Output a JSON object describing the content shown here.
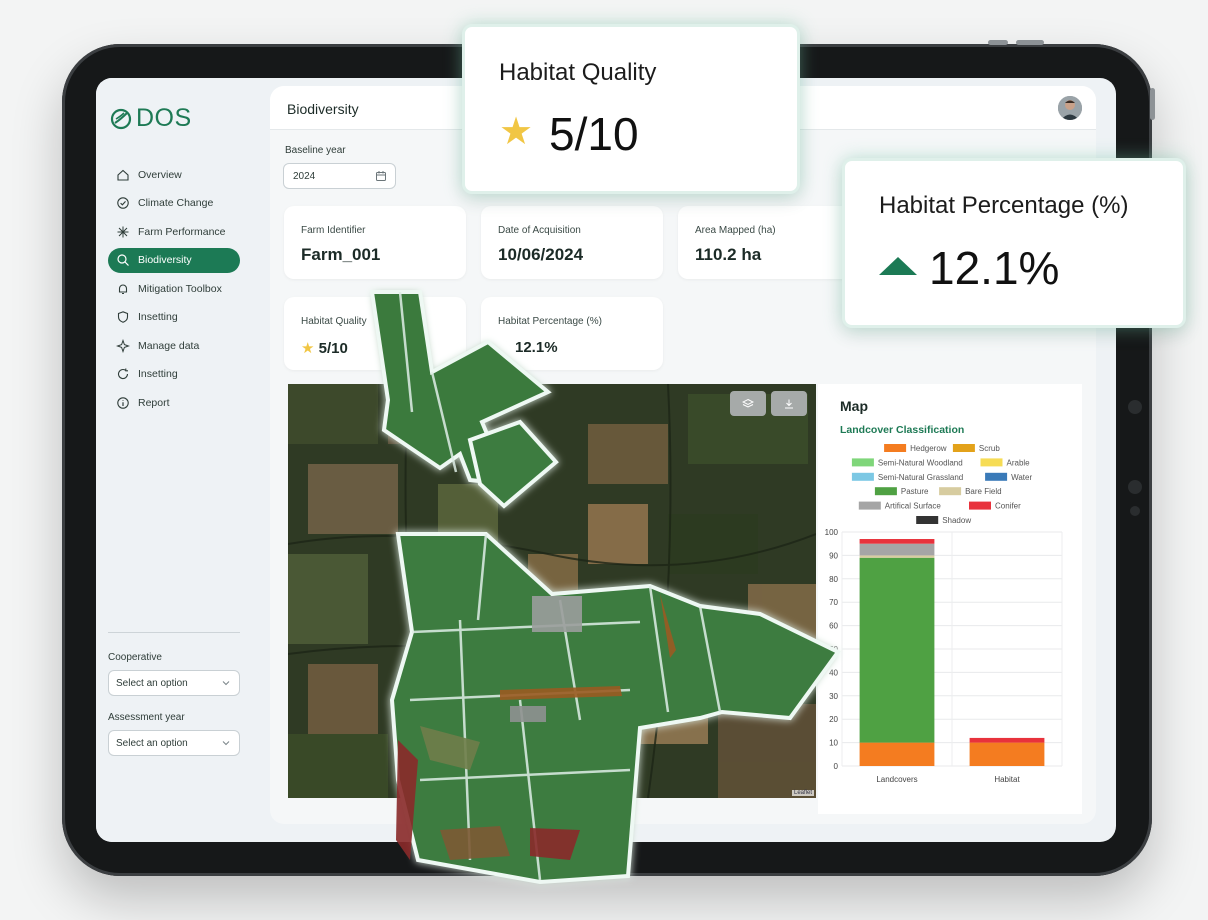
{
  "app": {
    "logo_text": "DOS",
    "brand_color": "#1c7a55"
  },
  "sidebar": {
    "items": [
      {
        "label": "Overview",
        "icon": "home-icon"
      },
      {
        "label": "Climate Change",
        "icon": "check-circle-icon"
      },
      {
        "label": "Farm Performance",
        "icon": "farm-icon"
      },
      {
        "label": "Biodiversity",
        "icon": "search-icon",
        "active": true
      },
      {
        "label": "Mitigation Toolbox",
        "icon": "bell-icon"
      },
      {
        "label": "Insetting",
        "icon": "shield-icon"
      },
      {
        "label": "Manage data",
        "icon": "sparkle-icon"
      },
      {
        "label": "Insetting",
        "icon": "refresh-icon"
      },
      {
        "label": "Report",
        "icon": "info-icon"
      }
    ],
    "cooperative_label": "Cooperative",
    "cooperative_value": "Select an option",
    "assessment_label": "Assessment year",
    "assessment_value": "Select an option"
  },
  "header": {
    "page_title": "Biodiversity"
  },
  "filters": {
    "baseline_label": "Baseline year",
    "baseline_value": "2024"
  },
  "cards": {
    "farm_id": {
      "label": "Farm Identifier",
      "value": "Farm_001"
    },
    "date": {
      "label": "Date of Acquisition",
      "value": "10/06/2024"
    },
    "area": {
      "label": "Area Mapped (ha)",
      "value": "110.2 ha"
    },
    "habitat_quality": {
      "label": "Habitat Quality",
      "value": "5/10",
      "rating": 5,
      "rating_max": 10
    },
    "habitat_percentage": {
      "label": "Habitat Percentage (%)",
      "value": "12.1%"
    }
  },
  "map": {
    "attribution": "Leaflet"
  },
  "chart_panel": {
    "title": "Map",
    "subtitle": "Landcover Classification"
  },
  "callouts": {
    "quality_label": "Habitat Quality",
    "quality_value": "5/10",
    "percentage_label": "Habitat Percentage (%)",
    "percentage_value": "12.1%",
    "star_color": "#f1c644",
    "trend_color": "#1c7a55"
  },
  "chart_data": {
    "type": "bar",
    "stacked": true,
    "categories": [
      "Landcovers",
      "Habitat"
    ],
    "ylim": [
      0,
      100
    ],
    "yticks": [
      0,
      10,
      20,
      30,
      40,
      50,
      60,
      70,
      80,
      90,
      100
    ],
    "grid": true,
    "legend_position": "top",
    "series": [
      {
        "name": "Hedgerow",
        "color": "#f47c20",
        "values": [
          10,
          10
        ]
      },
      {
        "name": "Scrub",
        "color": "#e3a21a",
        "values": [
          0,
          0
        ]
      },
      {
        "name": "Semi-Natural Woodland",
        "color": "#7fd67a",
        "values": [
          0,
          0
        ]
      },
      {
        "name": "Arable",
        "color": "#f6dc55",
        "values": [
          0,
          0
        ]
      },
      {
        "name": "Semi-Natural Grassland",
        "color": "#7cc8e4",
        "values": [
          0,
          0
        ]
      },
      {
        "name": "Water",
        "color": "#3a7ab8",
        "values": [
          0,
          0
        ]
      },
      {
        "name": "Pasture",
        "color": "#4fa143",
        "values": [
          79,
          0
        ]
      },
      {
        "name": "Bare Field",
        "color": "#d7cca0",
        "values": [
          1,
          0
        ]
      },
      {
        "name": "Artifical Surface",
        "color": "#a5a5a5",
        "values": [
          5,
          0
        ]
      },
      {
        "name": "Conifer",
        "color": "#e8323c",
        "values": [
          2,
          2
        ]
      },
      {
        "name": "Shadow",
        "color": "#333333",
        "values": [
          0,
          0
        ]
      }
    ]
  }
}
